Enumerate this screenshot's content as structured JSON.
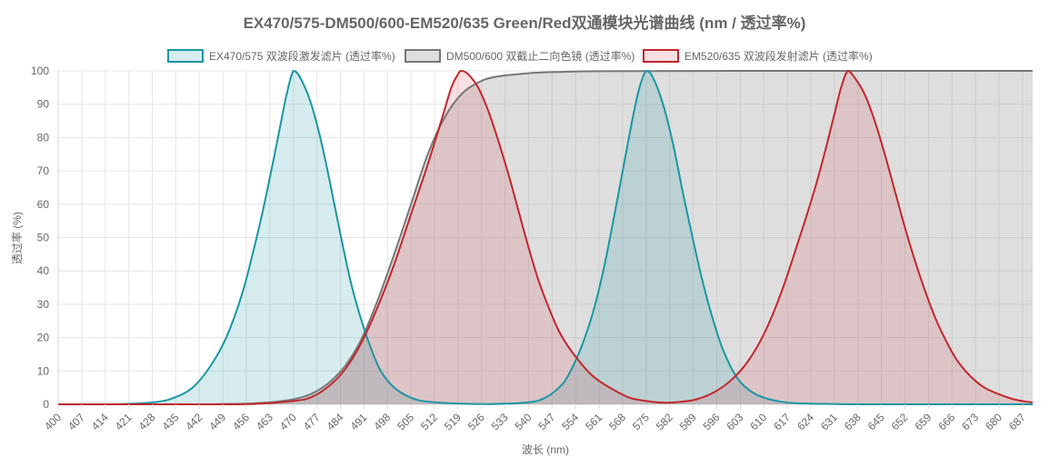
{
  "chart_data": {
    "type": "area",
    "title": "EX470/575-DM500/600-EM520/635 Green/Red双通模块光谱曲线 (nm / 透过率%)",
    "xlabel": "波长 (nm)",
    "ylabel": "透过率 (%)",
    "xlim": [
      400,
      690
    ],
    "ylim": [
      0,
      100
    ],
    "x_ticks": [
      400,
      407,
      414,
      421,
      428,
      435,
      442,
      449,
      456,
      463,
      470,
      477,
      484,
      491,
      498,
      505,
      512,
      519,
      526,
      533,
      540,
      547,
      554,
      561,
      568,
      575,
      582,
      589,
      596,
      603,
      610,
      617,
      624,
      631,
      638,
      645,
      652,
      659,
      666,
      673,
      680,
      687
    ],
    "y_ticks": [
      0,
      10,
      20,
      30,
      40,
      50,
      60,
      70,
      80,
      90,
      100
    ],
    "grid": true,
    "legend_position": "top",
    "series": [
      {
        "name": "EX470/575 双波段激发滤片 (透过率%)",
        "color": "#1a96a3",
        "fill": "rgba(26,150,163,0.18)",
        "points": [
          [
            400,
            0
          ],
          [
            410,
            0
          ],
          [
            420,
            0.1
          ],
          [
            430,
            0.8
          ],
          [
            435,
            2.2
          ],
          [
            440,
            5
          ],
          [
            445,
            11
          ],
          [
            450,
            20
          ],
          [
            455,
            34
          ],
          [
            460,
            54
          ],
          [
            463,
            68
          ],
          [
            466,
            83
          ],
          [
            468,
            93
          ],
          [
            470,
            100
          ],
          [
            472,
            98
          ],
          [
            475,
            91
          ],
          [
            478,
            80
          ],
          [
            481,
            66
          ],
          [
            484,
            51
          ],
          [
            487,
            37
          ],
          [
            490,
            26
          ],
          [
            493,
            17
          ],
          [
            496,
            10
          ],
          [
            500,
            5
          ],
          [
            505,
            2
          ],
          [
            510,
            0.8
          ],
          [
            520,
            0.2
          ],
          [
            530,
            0.1
          ],
          [
            540,
            0.6
          ],
          [
            545,
            2
          ],
          [
            550,
            6
          ],
          [
            553,
            11
          ],
          [
            556,
            18
          ],
          [
            559,
            27
          ],
          [
            562,
            39
          ],
          [
            565,
            54
          ],
          [
            568,
            70
          ],
          [
            571,
            86
          ],
          [
            573,
            95
          ],
          [
            575,
            100
          ],
          [
            577,
            98
          ],
          [
            580,
            90
          ],
          [
            583,
            78
          ],
          [
            586,
            63
          ],
          [
            589,
            49
          ],
          [
            592,
            36
          ],
          [
            595,
            25
          ],
          [
            598,
            16
          ],
          [
            602,
            8
          ],
          [
            606,
            4
          ],
          [
            610,
            2
          ],
          [
            615,
            0.8
          ],
          [
            620,
            0.3
          ],
          [
            630,
            0.1
          ],
          [
            640,
            0
          ],
          [
            690,
            0
          ]
        ]
      },
      {
        "name": "DM500/600 双截止二向色镜 (透过率%)",
        "color": "#777777",
        "fill": "rgba(160,160,160,0.35)",
        "points": [
          [
            400,
            0
          ],
          [
            440,
            0
          ],
          [
            450,
            0.1
          ],
          [
            456,
            0.2
          ],
          [
            460,
            0.4
          ],
          [
            465,
            0.8
          ],
          [
            470,
            1.5
          ],
          [
            475,
            3
          ],
          [
            480,
            6
          ],
          [
            485,
            11
          ],
          [
            490,
            19
          ],
          [
            495,
            31
          ],
          [
            500,
            45
          ],
          [
            505,
            60
          ],
          [
            510,
            75
          ],
          [
            515,
            86
          ],
          [
            520,
            93
          ],
          [
            525,
            96.5
          ],
          [
            530,
            98.2
          ],
          [
            540,
            99.3
          ],
          [
            550,
            99.7
          ],
          [
            560,
            99.9
          ],
          [
            600,
            100
          ],
          [
            690,
            100
          ]
        ]
      },
      {
        "name": "EM520/635 双波段发射滤片 (透过率%)",
        "color": "#c0272d",
        "fill": "rgba(214,80,90,0.18)",
        "points": [
          [
            400,
            0
          ],
          [
            450,
            0
          ],
          [
            460,
            0.2
          ],
          [
            470,
            1
          ],
          [
            475,
            2
          ],
          [
            480,
            5
          ],
          [
            485,
            10
          ],
          [
            490,
            18
          ],
          [
            495,
            29
          ],
          [
            500,
            42
          ],
          [
            505,
            57
          ],
          [
            510,
            72
          ],
          [
            514,
            85
          ],
          [
            517,
            95
          ],
          [
            519,
            99
          ],
          [
            520,
            100
          ],
          [
            522,
            99
          ],
          [
            525,
            95
          ],
          [
            528,
            88
          ],
          [
            531,
            79
          ],
          [
            534,
            69
          ],
          [
            537,
            58
          ],
          [
            540,
            47
          ],
          [
            543,
            37
          ],
          [
            546,
            29
          ],
          [
            549,
            22
          ],
          [
            552,
            17
          ],
          [
            555,
            13
          ],
          [
            558,
            9.5
          ],
          [
            561,
            7
          ],
          [
            565,
            4.5
          ],
          [
            570,
            2
          ],
          [
            575,
            1
          ],
          [
            580,
            0.5
          ],
          [
            585,
            0.7
          ],
          [
            590,
            1.5
          ],
          [
            595,
            3.5
          ],
          [
            600,
            7
          ],
          [
            605,
            12.5
          ],
          [
            610,
            21
          ],
          [
            615,
            33
          ],
          [
            620,
            48
          ],
          [
            625,
            64
          ],
          [
            628,
            75
          ],
          [
            631,
            87
          ],
          [
            633,
            95
          ],
          [
            635,
            100
          ],
          [
            637,
            98
          ],
          [
            640,
            93
          ],
          [
            643,
            85
          ],
          [
            646,
            75
          ],
          [
            649,
            64
          ],
          [
            652,
            53
          ],
          [
            655,
            43
          ],
          [
            658,
            34
          ],
          [
            661,
            26
          ],
          [
            664,
            19.5
          ],
          [
            667,
            14
          ],
          [
            670,
            10
          ],
          [
            673,
            7
          ],
          [
            676,
            4.8
          ],
          [
            680,
            3
          ],
          [
            684,
            1.6
          ],
          [
            688,
            0.8
          ],
          [
            690,
            0.6
          ]
        ]
      }
    ]
  }
}
